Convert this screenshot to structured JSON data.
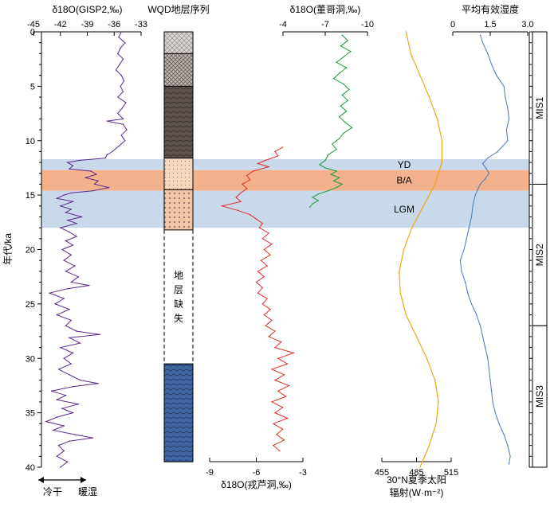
{
  "colors": {
    "purple": "#5b2a8c",
    "red": "#e0302a",
    "green": "#1a9a3a",
    "orange": "#f2a516",
    "blue": "#4a78b8",
    "band_blue": "#c9d9ea",
    "band_orange": "#f4b28c",
    "gap_fill": "#ffffff",
    "dark_brown": "#5e534d",
    "light_gray": "#d3d0cf",
    "sand": "#f1d2b8",
    "deep_blue": "#3f66a3"
  },
  "chart_data": {
    "type": "line",
    "ylabel": "年代/ka",
    "ylim": [
      0,
      40
    ],
    "yticks": [
      "0",
      "5",
      "10",
      "15",
      "20",
      "25",
      "30",
      "35",
      "40"
    ],
    "bands": [
      {
        "label": "YD",
        "from": 11.7,
        "to": 12.7,
        "color": "band_blue"
      },
      {
        "label": "B/A",
        "from": 12.7,
        "to": 14.6,
        "color": "band_orange"
      },
      {
        "label": "LGM",
        "from": 14.6,
        "to": 18.0,
        "color": "band_blue"
      }
    ],
    "mis": [
      {
        "label": "MIS1",
        "from": 0,
        "to": 14
      },
      {
        "label": "MIS2",
        "from": 14,
        "to": 27
      },
      {
        "label": "MIS3",
        "from": 27,
        "to": 40
      }
    ],
    "stratigraphy": {
      "title": "WQD地层序列",
      "gap_label": [
        "地",
        "层",
        "缺",
        "失"
      ],
      "layers": [
        {
          "from": 0,
          "to": 2,
          "pattern": "light"
        },
        {
          "from": 2,
          "to": 5,
          "pattern": "cross"
        },
        {
          "from": 5,
          "to": 11.6,
          "pattern": "dark"
        },
        {
          "from": 11.6,
          "to": 14.5,
          "pattern": "sand"
        },
        {
          "from": 14.5,
          "to": 18.2,
          "pattern": "sanddot"
        },
        {
          "from": 18.2,
          "to": 30.5,
          "pattern": "gap"
        },
        {
          "from": 30.5,
          "to": 39.5,
          "pattern": "blue"
        }
      ]
    },
    "series": [
      {
        "id": "gisp2",
        "label": "δ18O(GISP2,‰)",
        "color": "purple",
        "axis_position": "top",
        "xlim": [
          -45,
          -33
        ],
        "ticks": [
          "-45",
          "-42",
          "-39",
          "-36",
          "-33"
        ],
        "annotations": [
          "冷干",
          "暖湿"
        ],
        "points": [
          [
            0,
            -35.2
          ],
          [
            0.5,
            -35.5
          ],
          [
            1,
            -34.8
          ],
          [
            1.5,
            -35.3
          ],
          [
            2,
            -35.6
          ],
          [
            2.5,
            -35.0
          ],
          [
            3,
            -35.4
          ],
          [
            3.5,
            -35.8
          ],
          [
            4,
            -35.2
          ],
          [
            4.5,
            -34.9
          ],
          [
            5,
            -35.3
          ],
          [
            5.5,
            -35.0
          ],
          [
            6,
            -35.6
          ],
          [
            6.5,
            -34.7
          ],
          [
            7,
            -35.1
          ],
          [
            7.5,
            -35.6
          ],
          [
            8,
            -35.0
          ],
          [
            8.2,
            -36.8
          ],
          [
            8.5,
            -35.0
          ],
          [
            9,
            -34.6
          ],
          [
            9.5,
            -35.2
          ],
          [
            10,
            -34.8
          ],
          [
            10.5,
            -35.5
          ],
          [
            11,
            -36.2
          ],
          [
            11.3,
            -36.8
          ],
          [
            11.6,
            -37.0
          ],
          [
            11.8,
            -39.8
          ],
          [
            12.0,
            -41.2
          ],
          [
            12.3,
            -40.6
          ],
          [
            12.6,
            -41.0
          ],
          [
            12.8,
            -38.6
          ],
          [
            13.1,
            -38.0
          ],
          [
            13.4,
            -39.2
          ],
          [
            13.7,
            -37.8
          ],
          [
            14.0,
            -38.2
          ],
          [
            14.3,
            -36.6
          ],
          [
            14.6,
            -38.4
          ],
          [
            14.8,
            -40.8
          ],
          [
            15.0,
            -41.6
          ],
          [
            15.3,
            -42.4
          ],
          [
            15.6,
            -40.6
          ],
          [
            16.0,
            -42.0
          ],
          [
            16.3,
            -40.8
          ],
          [
            16.6,
            -41.4
          ],
          [
            17.0,
            -39.6
          ],
          [
            17.3,
            -41.2
          ],
          [
            17.6,
            -40.2
          ],
          [
            18.0,
            -42.0
          ],
          [
            18.4,
            -41.0
          ],
          [
            18.8,
            -40.2
          ],
          [
            19.2,
            -41.4
          ],
          [
            19.6,
            -40.6
          ],
          [
            20.0,
            -41.8
          ],
          [
            20.5,
            -40.8
          ],
          [
            21.0,
            -41.6
          ],
          [
            21.5,
            -40.4
          ],
          [
            22.0,
            -41.4
          ],
          [
            22.5,
            -40.0
          ],
          [
            23.0,
            -40.8
          ],
          [
            23.3,
            -38.8
          ],
          [
            23.6,
            -41.2
          ],
          [
            24.0,
            -43.2
          ],
          [
            24.5,
            -41.6
          ],
          [
            25.0,
            -42.6
          ],
          [
            25.5,
            -41.0
          ],
          [
            26.0,
            -42.4
          ],
          [
            26.5,
            -40.8
          ],
          [
            27.0,
            -41.4
          ],
          [
            27.5,
            -40.2
          ],
          [
            27.8,
            -37.6
          ],
          [
            28.1,
            -41.0
          ],
          [
            28.6,
            -39.8
          ],
          [
            29.0,
            -42.0
          ],
          [
            29.5,
            -40.6
          ],
          [
            30.0,
            -41.6
          ],
          [
            30.5,
            -40.8
          ],
          [
            31.0,
            -42.2
          ],
          [
            31.5,
            -41.0
          ],
          [
            32.0,
            -39.8
          ],
          [
            32.3,
            -37.8
          ],
          [
            32.6,
            -40.6
          ],
          [
            33.0,
            -43.0
          ],
          [
            33.4,
            -41.4
          ],
          [
            33.8,
            -42.4
          ],
          [
            34.2,
            -40.0
          ],
          [
            34.6,
            -41.8
          ],
          [
            35.0,
            -40.6
          ],
          [
            35.4,
            -42.4
          ],
          [
            35.8,
            -43.6
          ],
          [
            36.2,
            -41.6
          ],
          [
            36.6,
            -42.8
          ],
          [
            37.0,
            -40.4
          ],
          [
            37.3,
            -38.4
          ],
          [
            37.6,
            -41.0
          ],
          [
            38.0,
            -42.2
          ],
          [
            38.5,
            -41.6
          ],
          [
            39.0,
            -42.4
          ],
          [
            39.5,
            -41.2
          ],
          [
            40.0,
            -42.0
          ]
        ]
      },
      {
        "id": "dongge",
        "label": "δ18O(董哥洞,‰)",
        "color": "green",
        "axis_position": "top",
        "xlim": [
          -4,
          -10
        ],
        "ticks": [
          "-4",
          "-7",
          "-10"
        ],
        "points": [
          [
            0.3,
            -8.2
          ],
          [
            0.8,
            -8.6
          ],
          [
            1.3,
            -8.1
          ],
          [
            1.8,
            -8.8
          ],
          [
            2.3,
            -8.3
          ],
          [
            2.8,
            -7.8
          ],
          [
            3.3,
            -8.5
          ],
          [
            3.8,
            -8.0
          ],
          [
            4.3,
            -7.6
          ],
          [
            4.8,
            -8.3
          ],
          [
            5.3,
            -8.7
          ],
          [
            5.8,
            -8.2
          ],
          [
            6.3,
            -8.6
          ],
          [
            6.8,
            -8.1
          ],
          [
            7.3,
            -8.5
          ],
          [
            7.8,
            -8.0
          ],
          [
            8.3,
            -8.4
          ],
          [
            8.8,
            -8.9
          ],
          [
            9.3,
            -8.3
          ],
          [
            9.8,
            -8.0
          ],
          [
            10.3,
            -7.5
          ],
          [
            10.8,
            -7.8
          ],
          [
            11.3,
            -7.2
          ],
          [
            11.8,
            -7.0
          ],
          [
            12.2,
            -6.6
          ],
          [
            12.5,
            -7.0
          ],
          [
            12.8,
            -7.8
          ],
          [
            13.1,
            -7.4
          ],
          [
            13.4,
            -8.0
          ],
          [
            13.7,
            -7.6
          ],
          [
            14.0,
            -8.2
          ],
          [
            14.3,
            -7.8
          ],
          [
            14.6,
            -7.2
          ],
          [
            14.9,
            -6.5
          ],
          [
            15.2,
            -6.1
          ],
          [
            15.5,
            -6.5
          ],
          [
            15.8,
            -6.1
          ],
          [
            16.1,
            -5.9
          ]
        ]
      },
      {
        "id": "wulu",
        "label": "δ18O(戎芦洞,‰)",
        "color": "red",
        "axis_position": "bottom",
        "xlim": [
          -9,
          -3
        ],
        "ticks": [
          "-9",
          "-6",
          "-3"
        ],
        "points": [
          [
            10.6,
            -4.3
          ],
          [
            11.0,
            -4.8
          ],
          [
            11.4,
            -4.6
          ],
          [
            11.8,
            -5.4
          ],
          [
            12.1,
            -5.9
          ],
          [
            12.4,
            -5.2
          ],
          [
            12.8,
            -6.2
          ],
          [
            13.2,
            -6.6
          ],
          [
            13.6,
            -6.4
          ],
          [
            14.0,
            -6.9
          ],
          [
            14.4,
            -6.6
          ],
          [
            14.8,
            -7.0
          ],
          [
            15.2,
            -7.3
          ],
          [
            15.6,
            -7.0
          ],
          [
            16.0,
            -8.2
          ],
          [
            16.4,
            -7.2
          ],
          [
            16.8,
            -6.4
          ],
          [
            17.2,
            -6.0
          ],
          [
            17.6,
            -5.6
          ],
          [
            18.0,
            -5.8
          ],
          [
            18.5,
            -5.2
          ],
          [
            19.0,
            -5.6
          ],
          [
            19.5,
            -5.0
          ],
          [
            20.0,
            -5.5
          ],
          [
            20.5,
            -5.1
          ],
          [
            21.0,
            -5.7
          ],
          [
            21.5,
            -5.3
          ],
          [
            22.0,
            -5.9
          ],
          [
            22.5,
            -5.5
          ],
          [
            23.0,
            -6.0
          ],
          [
            23.5,
            -5.6
          ],
          [
            24.0,
            -5.9
          ],
          [
            24.5,
            -5.3
          ],
          [
            25.0,
            -5.6
          ],
          [
            25.5,
            -5.1
          ],
          [
            26.0,
            -5.5
          ],
          [
            26.5,
            -5.0
          ],
          [
            27.0,
            -5.4
          ],
          [
            27.5,
            -4.8
          ],
          [
            28.0,
            -5.2
          ],
          [
            28.5,
            -4.4
          ],
          [
            29.0,
            -4.8
          ],
          [
            29.5,
            -3.6
          ],
          [
            30.0,
            -4.6
          ],
          [
            30.5,
            -4.0
          ],
          [
            31.0,
            -5.0
          ],
          [
            31.5,
            -4.2
          ],
          [
            32.0,
            -4.8
          ],
          [
            32.5,
            -3.9
          ],
          [
            33.0,
            -4.6
          ],
          [
            33.5,
            -4.1
          ],
          [
            34.0,
            -5.0
          ],
          [
            34.5,
            -4.3
          ],
          [
            35.0,
            -4.8
          ],
          [
            35.5,
            -4.0
          ],
          [
            36.0,
            -4.9
          ],
          [
            36.5,
            -4.3
          ],
          [
            37.0,
            -4.7
          ],
          [
            37.5,
            -4.2
          ],
          [
            38.0,
            -4.9
          ],
          [
            38.5,
            -4.5
          ]
        ]
      },
      {
        "id": "insolation",
        "label": "30°N夏季太阳辐射(W·m⁻²)",
        "label_lines": [
          "30°N夏季太阳",
          "辐射(W·m⁻²)"
        ],
        "color": "orange",
        "axis_position": "bottom",
        "xlim": [
          455,
          515
        ],
        "ticks": [
          "455",
          "485",
          "515"
        ],
        "points": [
          [
            0,
            476
          ],
          [
            2,
            480
          ],
          [
            4,
            488
          ],
          [
            6,
            496
          ],
          [
            8,
            503
          ],
          [
            10,
            507
          ],
          [
            12,
            507
          ],
          [
            14,
            501
          ],
          [
            16,
            491
          ],
          [
            18,
            481
          ],
          [
            20,
            474
          ],
          [
            22,
            470
          ],
          [
            24,
            471
          ],
          [
            26,
            476
          ],
          [
            28,
            485
          ],
          [
            30,
            494
          ],
          [
            32,
            501
          ],
          [
            34,
            504
          ],
          [
            36,
            502
          ],
          [
            38,
            496
          ],
          [
            40,
            488
          ]
        ]
      },
      {
        "id": "moisture",
        "label": "平均有效湿度",
        "color": "blue",
        "axis_position": "top",
        "xlim": [
          0,
          3.0
        ],
        "ticks": [
          "0",
          "1.5",
          "3.0"
        ],
        "points": [
          [
            0.3,
            1.1
          ],
          [
            1,
            1.2
          ],
          [
            2,
            1.4
          ],
          [
            3,
            1.55
          ],
          [
            4,
            1.75
          ],
          [
            5,
            2.05
          ],
          [
            6,
            2.1
          ],
          [
            7,
            2.2
          ],
          [
            8,
            2.25
          ],
          [
            9,
            2.15
          ],
          [
            10,
            2.2
          ],
          [
            11,
            1.8
          ],
          [
            11.6,
            1.4
          ],
          [
            12.1,
            1.2
          ],
          [
            12.6,
            1.35
          ],
          [
            13,
            1.45
          ],
          [
            13.5,
            1.3
          ],
          [
            14,
            1.1
          ],
          [
            14.5,
            1.0
          ],
          [
            15,
            0.9
          ],
          [
            16,
            0.8
          ],
          [
            17,
            0.75
          ],
          [
            18,
            0.65
          ],
          [
            19,
            0.55
          ],
          [
            20,
            0.45
          ],
          [
            21,
            0.3
          ],
          [
            22,
            0.35
          ],
          [
            23,
            0.5
          ],
          [
            24,
            0.6
          ],
          [
            25,
            0.75
          ],
          [
            26,
            0.95
          ],
          [
            27,
            1.1
          ],
          [
            28,
            1.2
          ],
          [
            29,
            1.3
          ],
          [
            30,
            1.4
          ],
          [
            31,
            1.45
          ],
          [
            32,
            1.5
          ],
          [
            33,
            1.55
          ],
          [
            34,
            1.6
          ],
          [
            35,
            1.7
          ],
          [
            36,
            1.85
          ],
          [
            37,
            2.05
          ],
          [
            38,
            2.2
          ],
          [
            39,
            2.3
          ],
          [
            39.7,
            2.25
          ]
        ]
      }
    ]
  }
}
